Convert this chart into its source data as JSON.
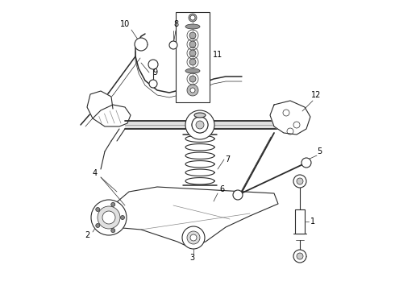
{
  "bg_color": "#ffffff",
  "line_color": "#2a2a2a",
  "text_color": "#000000",
  "fig_width": 4.9,
  "fig_height": 3.6,
  "dpi": 100,
  "border_color": "#cccccc",
  "gray_light": "#bbbbbb",
  "gray_mid": "#888888",
  "gray_dark": "#444444"
}
